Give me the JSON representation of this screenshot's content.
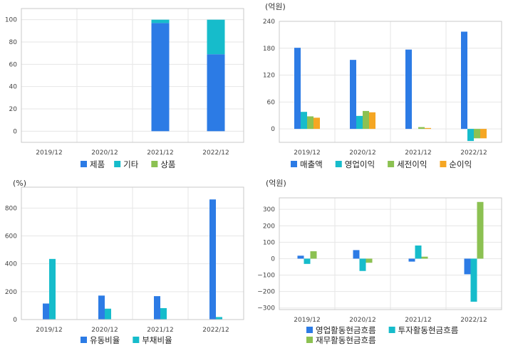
{
  "colors": {
    "blue": "#2c7be5",
    "teal": "#16bccb",
    "green": "#8cc152",
    "orange": "#f5a623"
  },
  "chart_data": [
    {
      "type": "bar",
      "stacked": true,
      "unit": "",
      "categories": [
        "2019/12",
        "2020/12",
        "2021/12",
        "2022/12"
      ],
      "ylim": [
        -10,
        110
      ],
      "yticks": [
        0,
        20,
        40,
        60,
        80,
        100
      ],
      "grid": true,
      "legend_position": "bottom",
      "series": [
        {
          "name": "제품",
          "color": "#2c7be5",
          "values": [
            null,
            null,
            97,
            69
          ]
        },
        {
          "name": "기타",
          "color": "#16bccb",
          "values": [
            null,
            null,
            3,
            31
          ]
        },
        {
          "name": "상품",
          "color": "#8cc152",
          "values": [
            null,
            null,
            0,
            0
          ]
        }
      ]
    },
    {
      "type": "bar",
      "unit": "(억원)",
      "categories": [
        "2019/12",
        "2020/12",
        "2021/12",
        "2022/12"
      ],
      "ylim": [
        -30,
        240
      ],
      "yticks": [
        0,
        60,
        120,
        180,
        240
      ],
      "grid": true,
      "legend_position": "bottom",
      "series": [
        {
          "name": "매출액",
          "color": "#2c7be5",
          "values": [
            181,
            154,
            177,
            217
          ]
        },
        {
          "name": "영업이익",
          "color": "#16bccb",
          "values": [
            38,
            29,
            0,
            -27
          ]
        },
        {
          "name": "세전이익",
          "color": "#8cc152",
          "values": [
            28,
            40,
            4,
            -21
          ]
        },
        {
          "name": "순이익",
          "color": "#f5a623",
          "values": [
            25,
            37,
            2,
            -21
          ]
        }
      ]
    },
    {
      "type": "bar",
      "unit": "(%)",
      "categories": [
        "2019/12",
        "2020/12",
        "2021/12",
        "2022/12"
      ],
      "ylim": [
        0,
        950
      ],
      "yticks": [
        0,
        200,
        400,
        600,
        800
      ],
      "grid": true,
      "legend_position": "bottom",
      "series": [
        {
          "name": "유동비율",
          "color": "#2c7be5",
          "values": [
            115,
            172,
            168,
            862
          ]
        },
        {
          "name": "부채비율",
          "color": "#16bccb",
          "values": [
            435,
            78,
            82,
            18
          ]
        }
      ]
    },
    {
      "type": "bar",
      "unit": "(억원)",
      "categories": [
        "2019/12",
        "2020/12",
        "2021/12",
        "2022/12"
      ],
      "ylim": [
        -310,
        370
      ],
      "yticks": [
        -300,
        -200,
        -100,
        0,
        100,
        200,
        300
      ],
      "grid": true,
      "legend_position": "bottom",
      "series": [
        {
          "name": "영업활동현금흐름",
          "color": "#2c7be5",
          "values": [
            18,
            52,
            -18,
            -95
          ]
        },
        {
          "name": "투자활동현금흐름",
          "color": "#16bccb",
          "values": [
            -32,
            -75,
            80,
            -262
          ]
        },
        {
          "name": "재무활동현금흐름",
          "color": "#8cc152",
          "values": [
            45,
            -25,
            12,
            345
          ]
        }
      ]
    }
  ]
}
